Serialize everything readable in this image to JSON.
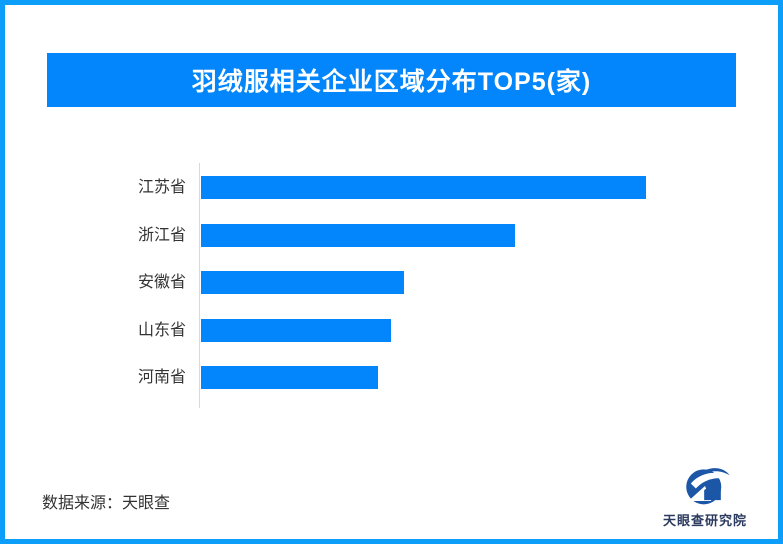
{
  "page": {
    "background_color": "#ffffff",
    "border_color": "#0D9EF9"
  },
  "header": {
    "title": "羽绒服相关企业区域分布TOP5(家)",
    "banner_color": "#0386FB",
    "title_color": "#ffffff"
  },
  "chart_data": {
    "type": "bar",
    "orientation": "horizontal",
    "title": "羽绒服相关企业区域分布TOP5(家)",
    "categories": [
      "江苏省",
      "浙江省",
      "安徽省",
      "山东省",
      "河南省"
    ],
    "values": [
      445,
      314,
      203,
      190,
      177
    ],
    "values_are_estimates": true,
    "xlabel": "",
    "ylabel": "",
    "grid": false,
    "legend": false,
    "data_labels": false,
    "bar_color": "#0386FB",
    "axis_line_color": "#D9D9D9",
    "category_label_color": "#333333"
  },
  "footer": {
    "source_text": "数据来源：天眼查",
    "logo_text": "天眼查研究院",
    "logo_mark_color": "#1C56A7",
    "logo_text_color": "#2B3A5E"
  }
}
